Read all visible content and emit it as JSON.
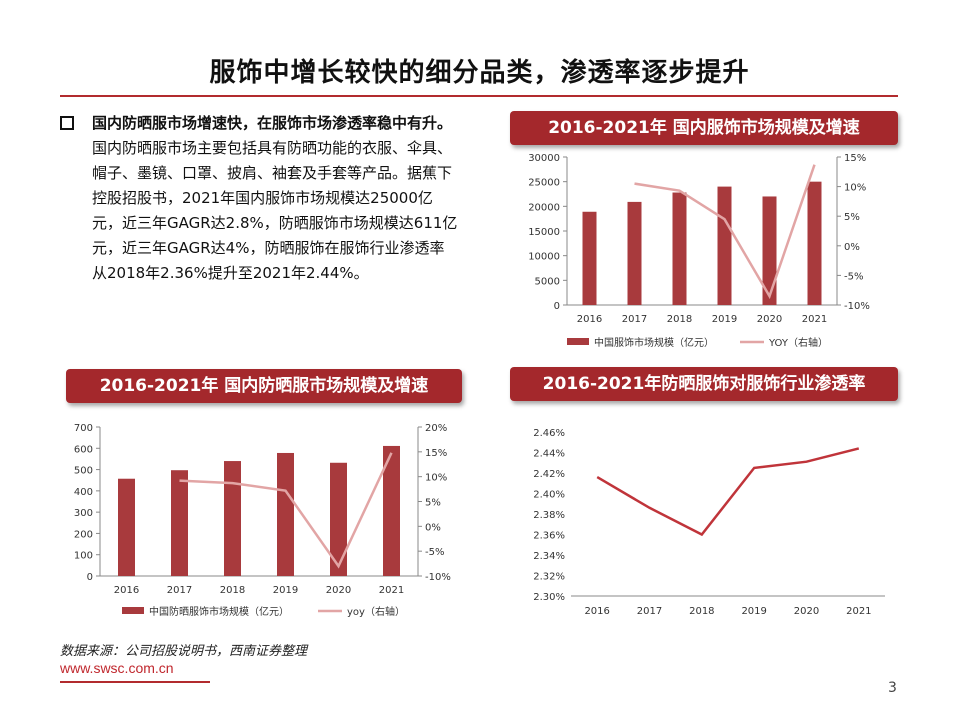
{
  "page": {
    "title": "服饰中增长较快的细分品类，渗透率逐步提升",
    "bullet": {
      "bold": "国内防晒服市场增速快，在服饰市场渗透率稳中有升。",
      "body": "国内防晒服市场主要包括具有防晒功能的衣服、伞具、帽子、墨镜、口罩、披肩、袖套及手套等产品。据蕉下控股招股书，2021年国内服饰市场规模达25000亿元，近三年GAGR达2.8%，防晒服饰市场规模达611亿元，近三年GAGR达4%，防晒服饰在服饰行业渗透率从2018年2.36%提升至2021年2.44%。"
    },
    "source": "数据来源：公司招股说明书，西南证券整理",
    "url": "www.swsc.com.cn",
    "page_number": "3"
  },
  "colors": {
    "bar": "#a83a3d",
    "line": "#e2a5a5",
    "line_dark": "#c0343a",
    "header_bg": "#a4282c"
  },
  "chart_data": [
    {
      "id": "apparel",
      "type": "bar",
      "title": "2016-2021年 国内服饰市场规模及增速",
      "categories": [
        "2016",
        "2017",
        "2018",
        "2019",
        "2020",
        "2021"
      ],
      "series": [
        {
          "name": "中国服饰市场规模（亿元）",
          "type": "bar",
          "axis": "left",
          "values": [
            18900,
            20900,
            22800,
            24000,
            22000,
            25000
          ]
        },
        {
          "name": "YOY（右轴）",
          "type": "line",
          "axis": "right",
          "values": [
            null,
            10.5,
            9.3,
            4.5,
            -8.5,
            13.7
          ]
        }
      ],
      "ylim": [
        0,
        30000
      ],
      "yticks": [
        "0",
        "5000",
        "10000",
        "15000",
        "20000",
        "25000",
        "30000"
      ],
      "y2lim": [
        -10,
        15
      ],
      "y2ticks": [
        "-10%",
        "-5%",
        "0%",
        "5%",
        "10%",
        "15%"
      ],
      "legend": "bottom"
    },
    {
      "id": "sunprotect",
      "type": "bar",
      "title": "2016-2021年 国内防晒服市场规模及增速",
      "categories": [
        "2016",
        "2017",
        "2018",
        "2019",
        "2020",
        "2021"
      ],
      "series": [
        {
          "name": "中国防晒服饰市场规模（亿元）",
          "type": "bar",
          "axis": "left",
          "values": [
            457,
            497,
            540,
            578,
            532,
            611
          ]
        },
        {
          "name": "yoy（右轴）",
          "type": "line",
          "axis": "right",
          "values": [
            null,
            9.2,
            8.7,
            7.2,
            -8.0,
            14.8
          ]
        }
      ],
      "ylim": [
        0,
        700
      ],
      "yticks": [
        "0",
        "100",
        "200",
        "300",
        "400",
        "500",
        "600",
        "700"
      ],
      "y2lim": [
        -10,
        20
      ],
      "y2ticks": [
        "-10%",
        "-5%",
        "0%",
        "5%",
        "10%",
        "15%",
        "20%"
      ],
      "legend": "bottom"
    },
    {
      "id": "penetration",
      "type": "line",
      "title": "2016-2021年防晒服饰对服饰行业渗透率",
      "categories": [
        "2016",
        "2017",
        "2018",
        "2019",
        "2020",
        "2021"
      ],
      "series": [
        {
          "values": [
            2.416,
            2.386,
            2.36,
            2.425,
            2.431,
            2.444
          ]
        }
      ],
      "ylim": [
        2.3,
        2.46
      ],
      "yticks": [
        "2.30%",
        "2.32%",
        "2.34%",
        "2.36%",
        "2.38%",
        "2.40%",
        "2.42%",
        "2.44%",
        "2.46%"
      ]
    }
  ]
}
